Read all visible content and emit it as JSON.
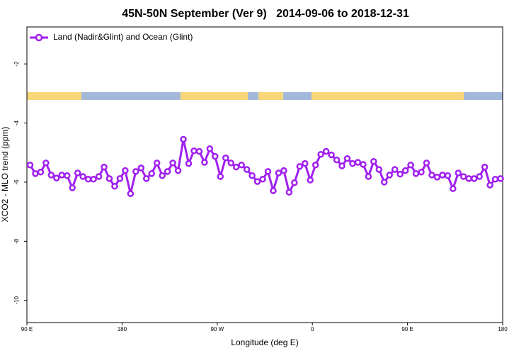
{
  "chart_data": {
    "type": "line",
    "title": "45N-50N September (Ver 9)   2014-09-06 to 2018-12-31",
    "x_label": "Longitude (deg E)",
    "y_label": "XCO2 - MLO trend (ppm)",
    "x": [
      93,
      98,
      103,
      108,
      113,
      118,
      123,
      128,
      133,
      138,
      143,
      148,
      153,
      158,
      163,
      168,
      173,
      178,
      183,
      188,
      193,
      198,
      203,
      208,
      213,
      218,
      223,
      228,
      233,
      238,
      243,
      248,
      253,
      258,
      263,
      268,
      273,
      278,
      283,
      288,
      293,
      298,
      303,
      308,
      313,
      318,
      323,
      328,
      333,
      338,
      343,
      348,
      353,
      358,
      363,
      368,
      373,
      378,
      383,
      388,
      393,
      398,
      403,
      408,
      413,
      418,
      423,
      428,
      433,
      438,
      443,
      448,
      453,
      458,
      463,
      468,
      473,
      478,
      483,
      488,
      493,
      498,
      503,
      508,
      513,
      518,
      523,
      528,
      533,
      538
    ],
    "series": [
      {
        "name": "Land (Nadir&Glint) and Ocean (Glint)",
        "color": "#a020f0",
        "values": [
          -5.42,
          -5.71,
          -5.66,
          -5.35,
          -5.76,
          -5.86,
          -5.76,
          -5.78,
          -6.19,
          -5.69,
          -5.81,
          -5.9,
          -5.9,
          -5.81,
          -5.49,
          -5.88,
          -6.14,
          -5.88,
          -5.61,
          -6.39,
          -5.64,
          -5.52,
          -5.88,
          -5.71,
          -5.35,
          -5.78,
          -5.64,
          -5.35,
          -5.61,
          -4.55,
          -5.37,
          -4.94,
          -4.96,
          -5.33,
          -4.87,
          -5.13,
          -5.81,
          -5.18,
          -5.35,
          -5.49,
          -5.42,
          -5.57,
          -5.78,
          -5.98,
          -5.9,
          -5.64,
          -6.29,
          -5.69,
          -5.61,
          -6.34,
          -6.02,
          -5.47,
          -5.37,
          -5.93,
          -5.42,
          -5.06,
          -4.96,
          -5.08,
          -5.25,
          -5.45,
          -5.2,
          -5.37,
          -5.33,
          -5.4,
          -5.81,
          -5.3,
          -5.57,
          -6.0,
          -5.76,
          -5.57,
          -5.73,
          -5.61,
          -5.42,
          -5.71,
          -5.66,
          -5.35,
          -5.76,
          -5.83,
          -5.76,
          -5.78,
          -6.22,
          -5.69,
          -5.81,
          -5.88,
          -5.88,
          -5.81,
          -5.49,
          -6.1,
          -5.9,
          -5.88
        ]
      }
    ],
    "xlim": [
      90,
      540
    ],
    "xticks": [
      {
        "value": 90,
        "label": "90 E"
      },
      180,
      {
        "value": 270,
        "label": "90 W"
      },
      {
        "value": 360,
        "label": "0"
      },
      {
        "value": 450,
        "label": "90 E"
      },
      {
        "value": 540,
        "label": "180"
      }
    ],
    "ylim": [
      -10.75,
      -0.75
    ],
    "yticks": [
      -2,
      -4,
      -6,
      -8,
      -10
    ],
    "legend": "top-left",
    "grid": false
  }
}
